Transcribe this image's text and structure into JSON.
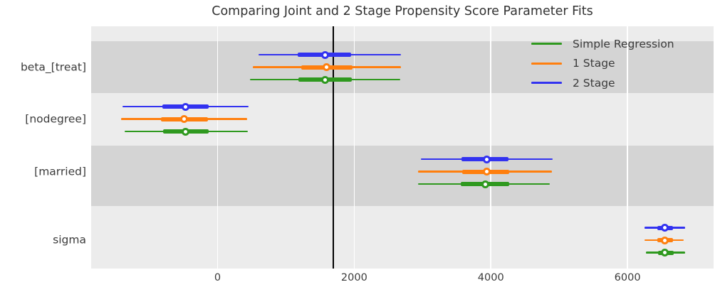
{
  "chart_data": {
    "type": "forest",
    "title": "Comparing Joint and 2 Stage Propensity Score Parameter Fits",
    "xlabel": "",
    "ylabel": "",
    "xlim": [
      -1850,
      7260
    ],
    "x_ticks": [
      0,
      2000,
      4000,
      6000
    ],
    "grid": "vertical-white",
    "reference_line_x": 1690,
    "legend_position": "upper right",
    "legend": [
      {
        "label": "Simple Regression",
        "color": "#2f991f"
      },
      {
        "label": "1 Stage",
        "color": "#ff7f0e"
      },
      {
        "label": "2 Stage",
        "color": "#3232f0"
      }
    ],
    "colors": {
      "plot_background": "#ececec",
      "band": "#d4d4d4",
      "gridline": "#ffffff",
      "reference_line": "#000000",
      "marker_face": "#ffffff"
    },
    "parameters": [
      {
        "label": "beta_[treat]",
        "estimates": [
          {
            "series": "2 Stage",
            "median": 1575,
            "hdi_thick": [
              1175,
              1950
            ],
            "hdi_thin": [
              600,
              2680
            ]
          },
          {
            "series": "1 Stage",
            "median": 1600,
            "hdi_thick": [
              1220,
              1980
            ],
            "hdi_thin": [
              515,
              2685
            ]
          },
          {
            "series": "Simple Regression",
            "median": 1575,
            "hdi_thick": [
              1185,
              1965
            ],
            "hdi_thin": [
              475,
              2670
            ]
          }
        ]
      },
      {
        "label": "[nodegree]",
        "estimates": [
          {
            "series": "2 Stage",
            "median": -465,
            "hdi_thick": [
              -805,
              -135
            ],
            "hdi_thin": [
              -1390,
              455
            ]
          },
          {
            "series": "1 Stage",
            "median": -485,
            "hdi_thick": [
              -830,
              -145
            ],
            "hdi_thin": [
              -1410,
              435
            ]
          },
          {
            "series": "Simple Regression",
            "median": -465,
            "hdi_thick": [
              -795,
              -125
            ],
            "hdi_thin": [
              -1360,
              445
            ]
          }
        ]
      },
      {
        "label": "[married]",
        "estimates": [
          {
            "series": "2 Stage",
            "median": 3935,
            "hdi_thick": [
              3570,
              4255
            ],
            "hdi_thin": [
              2980,
              4900
            ]
          },
          {
            "series": "1 Stage",
            "median": 3945,
            "hdi_thick": [
              3580,
              4270
            ],
            "hdi_thin": [
              2935,
              4890
            ]
          },
          {
            "series": "Simple Regression",
            "median": 3915,
            "hdi_thick": [
              3560,
              4270
            ],
            "hdi_thin": [
              2930,
              4865
            ]
          }
        ]
      },
      {
        "label": "sigma",
        "estimates": [
          {
            "series": "2 Stage",
            "median": 6545,
            "hdi_thick": [
              6440,
              6665
            ],
            "hdi_thin": [
              6245,
              6840
            ]
          },
          {
            "series": "1 Stage",
            "median": 6545,
            "hdi_thick": [
              6435,
              6670
            ],
            "hdi_thin": [
              6250,
              6820
            ]
          },
          {
            "series": "Simple Regression",
            "median": 6545,
            "hdi_thick": [
              6445,
              6675
            ],
            "hdi_thin": [
              6270,
              6845
            ]
          }
        ]
      }
    ]
  }
}
